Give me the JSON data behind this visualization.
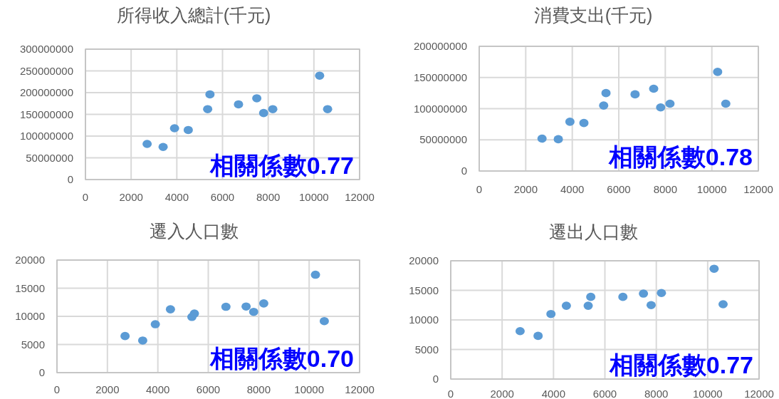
{
  "chart_data": [
    {
      "type": "scatter",
      "title": "所得收入總計(千元)",
      "color": "#5b9bd5",
      "marker": "circle",
      "grid": true,
      "x": [
        2700,
        3400,
        3900,
        4500,
        5350,
        5450,
        6700,
        7500,
        7800,
        8200,
        10250,
        10600
      ],
      "values": [
        82000000,
        75000000,
        118000000,
        114000000,
        162000000,
        196000000,
        173000000,
        187000000,
        153000000,
        162000000,
        239000000,
        162000000
      ],
      "xlim": [
        0,
        12000
      ],
      "xticks": [
        0,
        2000,
        4000,
        6000,
        8000,
        10000,
        12000
      ],
      "ylim": [
        0,
        300000000
      ],
      "yticks": [
        0,
        50000000,
        100000000,
        150000000,
        200000000,
        250000000,
        300000000
      ],
      "annotations": [
        "相關係數0.77"
      ]
    },
    {
      "type": "scatter",
      "title": "消費支出(千元)",
      "color": "#5b9bd5",
      "marker": "circle",
      "grid": true,
      "x": [
        2700,
        3400,
        3900,
        4500,
        5350,
        5450,
        6700,
        7500,
        7800,
        8200,
        10250,
        10600
      ],
      "values": [
        52000000,
        51000000,
        79000000,
        77000000,
        105000000,
        125000000,
        123000000,
        132000000,
        102000000,
        108000000,
        159000000,
        108000000
      ],
      "xlim": [
        0,
        12000
      ],
      "xticks": [
        0,
        2000,
        4000,
        6000,
        8000,
        10000,
        12000
      ],
      "ylim": [
        0,
        200000000
      ],
      "yticks": [
        0,
        50000000,
        100000000,
        150000000,
        200000000
      ],
      "annotations": [
        "相關係數0.78"
      ]
    },
    {
      "type": "scatter",
      "title": "遷入人口數",
      "color": "#5b9bd5",
      "marker": "circle",
      "grid": true,
      "x": [
        2700,
        3400,
        3900,
        4500,
        5350,
        5450,
        6700,
        7500,
        7800,
        8200,
        10250,
        10600
      ],
      "values": [
        6500,
        5700,
        8600,
        11250,
        9900,
        10500,
        11700,
        11750,
        10800,
        12300,
        17400,
        9150
      ],
      "xlim": [
        0,
        12000
      ],
      "xticks": [
        0,
        2000,
        4000,
        6000,
        8000,
        10000,
        12000
      ],
      "ylim": [
        0,
        20000
      ],
      "yticks": [
        0,
        5000,
        10000,
        15000,
        20000
      ],
      "annotations": [
        "相關係數0.70"
      ]
    },
    {
      "type": "scatter",
      "title": "遷出人口數",
      "color": "#5b9bd5",
      "marker": "circle",
      "grid": true,
      "x": [
        2700,
        3400,
        3900,
        4500,
        5350,
        5450,
        6700,
        7500,
        7800,
        8200,
        10250,
        10600
      ],
      "values": [
        8100,
        7300,
        11000,
        12400,
        12400,
        13900,
        13900,
        14450,
        12500,
        14550,
        18650,
        12650
      ],
      "xlim": [
        0,
        12000
      ],
      "xticks": [
        0,
        2000,
        4000,
        6000,
        8000,
        10000,
        12000
      ],
      "ylim": [
        0,
        20000
      ],
      "yticks": [
        0,
        5000,
        10000,
        15000,
        20000
      ],
      "annotations": [
        "相關係數0.77"
      ]
    }
  ]
}
